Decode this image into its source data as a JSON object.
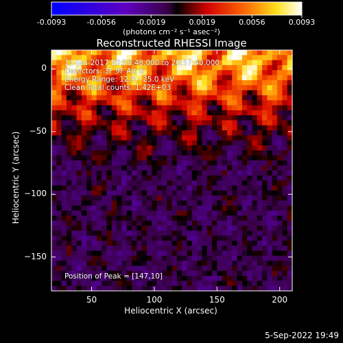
{
  "title": "Reconstructed RHESSI Image",
  "colorbar": {
    "ticks": [
      "-0.0093",
      "-0.0056",
      "-0.0019",
      "0.0019",
      "0.0056",
      "0.0093"
    ],
    "tick_values": [
      -0.0093,
      -0.0056,
      -0.0019,
      0.0019,
      0.0056,
      0.0093
    ],
    "units": "(photons cm⁻² s⁻¹ asec⁻²)"
  },
  "info": {
    "time": "11-Jan-2017 20:56:48.000 to 20:57:40.000",
    "detectors": "Detectors: 3F 9F  Att 0",
    "energy": "Energy Range: 12.0 - 25.0 keV",
    "method": "Clean    Total counts: 1.42E+03"
  },
  "peak": "Position of Peak = [147,10]",
  "date_stamp": "5-Sep-2022 19:49",
  "chart_data": {
    "type": "heatmap",
    "title": "Reconstructed RHESSI Image",
    "xlabel": "Heliocentric X (arcsec)",
    "ylabel": "Heliocentric Y (arcsec)",
    "xlim": [
      18,
      210
    ],
    "ylim": [
      -177,
      15
    ],
    "x_ticks": [
      50,
      100,
      150,
      200
    ],
    "y_ticks": [
      0,
      -50,
      -100,
      -150
    ],
    "x_tick_labels": [
      "50",
      "100",
      "150",
      "200"
    ],
    "y_tick_labels": [
      "0",
      "−50",
      "−100",
      "−150"
    ],
    "value_range": [
      -0.0093,
      0.0093
    ],
    "peak_position": [
      147,
      10
    ]
  }
}
